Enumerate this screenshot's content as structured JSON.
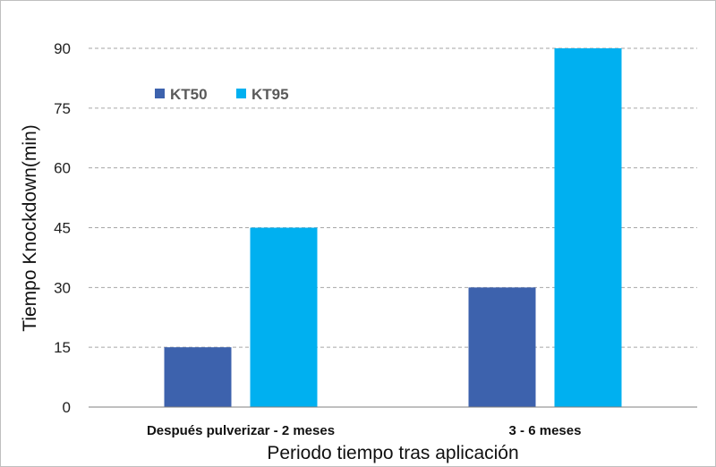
{
  "chart_data": {
    "type": "bar",
    "title": "",
    "xlabel": "Periodo tiempo tras aplicación",
    "ylabel": "Tiempo Knockdown(min)",
    "categories": [
      "Después pulverizar - 2 meses",
      "3 - 6 meses"
    ],
    "series": [
      {
        "name": "KT50",
        "values": [
          15,
          30
        ],
        "color": "#3d62ad"
      },
      {
        "name": "KT95",
        "values": [
          45,
          90
        ],
        "color": "#00b0f0"
      }
    ],
    "ylim": [
      0,
      90
    ],
    "yticks": [
      0,
      15,
      30,
      45,
      60,
      75,
      90
    ],
    "grid": "horizontal-dashed",
    "legend_position": "top-left"
  }
}
